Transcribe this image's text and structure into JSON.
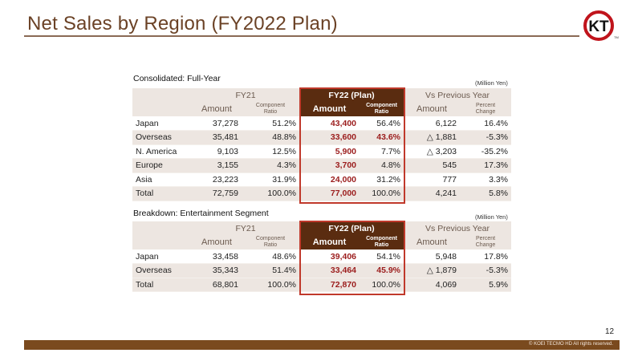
{
  "title": "Net Sales by Region (FY2022 Plan)",
  "logo_text": "KT",
  "logo_tm": "TM",
  "headers": {
    "fy21": "FY21",
    "fy22": "FY22 (Plan)",
    "vs": "Vs Previous Year",
    "amount": "Amount",
    "component_ratio_1": "Component",
    "component_ratio_2": "Ratio",
    "percent_change_1": "Percent",
    "percent_change_2": "Change"
  },
  "unit": "(Million Yen)",
  "consolidated": {
    "label": "Consolidated: Full-Year",
    "rows": [
      {
        "region": "Japan",
        "fy21_amount": "37,278",
        "fy21_ratio": "51.2%",
        "fy22_amount": "43,400",
        "fy22_ratio": "56.4%",
        "vs_amount": "6,122",
        "vs_pct": "16.4%"
      },
      {
        "region": "Overseas",
        "fy21_amount": "35,481",
        "fy21_ratio": "48.8%",
        "fy22_amount": "33,600",
        "fy22_ratio": "43.6%",
        "vs_amount": "△ 1,881",
        "vs_pct": "-5.3%"
      },
      {
        "region": "N. America",
        "fy21_amount": "9,103",
        "fy21_ratio": "12.5%",
        "fy22_amount": "5,900",
        "fy22_ratio": "7.7%",
        "vs_amount": "△ 3,203",
        "vs_pct": "-35.2%"
      },
      {
        "region": "Europe",
        "fy21_amount": "3,155",
        "fy21_ratio": "4.3%",
        "fy22_amount": "3,700",
        "fy22_ratio": "4.8%",
        "vs_amount": "545",
        "vs_pct": "17.3%"
      },
      {
        "region": "Asia",
        "fy21_amount": "23,223",
        "fy21_ratio": "31.9%",
        "fy22_amount": "24,000",
        "fy22_ratio": "31.2%",
        "vs_amount": "777",
        "vs_pct": "3.3%"
      },
      {
        "region": "Total",
        "fy21_amount": "72,759",
        "fy21_ratio": "100.0%",
        "fy22_amount": "77,000",
        "fy22_ratio": "100.0%",
        "vs_amount": "4,241",
        "vs_pct": "5.8%"
      }
    ]
  },
  "entertainment": {
    "label": "Breakdown: Entertainment Segment",
    "rows": [
      {
        "region": "Japan",
        "fy21_amount": "33,458",
        "fy21_ratio": "48.6%",
        "fy22_amount": "39,406",
        "fy22_ratio": "54.1%",
        "vs_amount": "5,948",
        "vs_pct": "17.8%"
      },
      {
        "region": "Overseas",
        "fy21_amount": "35,343",
        "fy21_ratio": "51.4%",
        "fy22_amount": "33,464",
        "fy22_ratio": "45.9%",
        "vs_amount": "△ 1,879",
        "vs_pct": "-5.3%"
      },
      {
        "region": "Total",
        "fy21_amount": "68,801",
        "fy21_ratio": "100.0%",
        "fy22_amount": "72,870",
        "fy22_ratio": "100.0%",
        "vs_amount": "4,069",
        "vs_pct": "5.9%"
      }
    ]
  },
  "page_number": "12",
  "copyright": "© KOEI TECMO HD All rights reserved.",
  "colors": {
    "accent_brown": "#5a2c10",
    "highlight_red": "#9b1c1c",
    "box_red": "#c0392b",
    "shade": "#ede6e1",
    "footer": "#7a4a1e"
  }
}
